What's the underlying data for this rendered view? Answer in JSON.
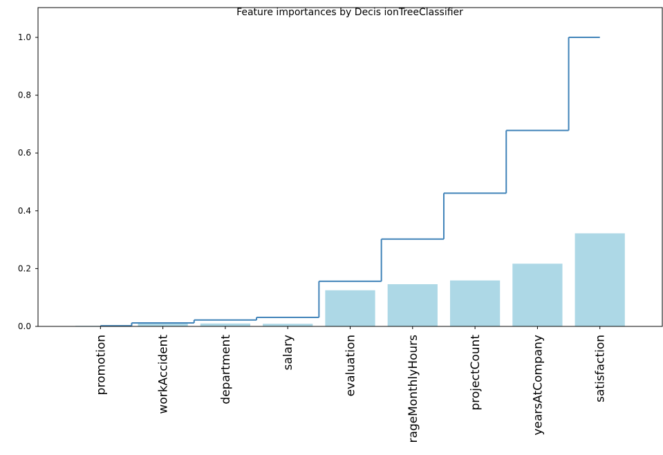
{
  "chart_data": {
    "type": "bar-step",
    "title": "Feature importances by Decis ionTreeClassifier",
    "categories": [
      "promotion",
      "workAccident",
      "department",
      "salary",
      "evaluation",
      "rageMonthlyHours",
      "projectCount",
      "yearsAtCompany",
      "satisfaction"
    ],
    "series": [
      {
        "type": "bar",
        "color": "#add8e6",
        "values": [
          0.002,
          0.01,
          0.01,
          0.009,
          0.125,
          0.146,
          0.159,
          0.217,
          0.322
        ]
      },
      {
        "type": "step",
        "color": "#3f82b8",
        "values": [
          0.002,
          0.012,
          0.022,
          0.031,
          0.156,
          0.302,
          0.461,
          0.678,
          1.0
        ]
      }
    ],
    "ylim": [
      0,
      1.103
    ],
    "yticks": [
      {
        "value": 0,
        "label": "0.0"
      },
      0.2,
      0.4,
      0.6,
      0.8,
      {
        "value": 1,
        "label": "1.0"
      }
    ]
  }
}
